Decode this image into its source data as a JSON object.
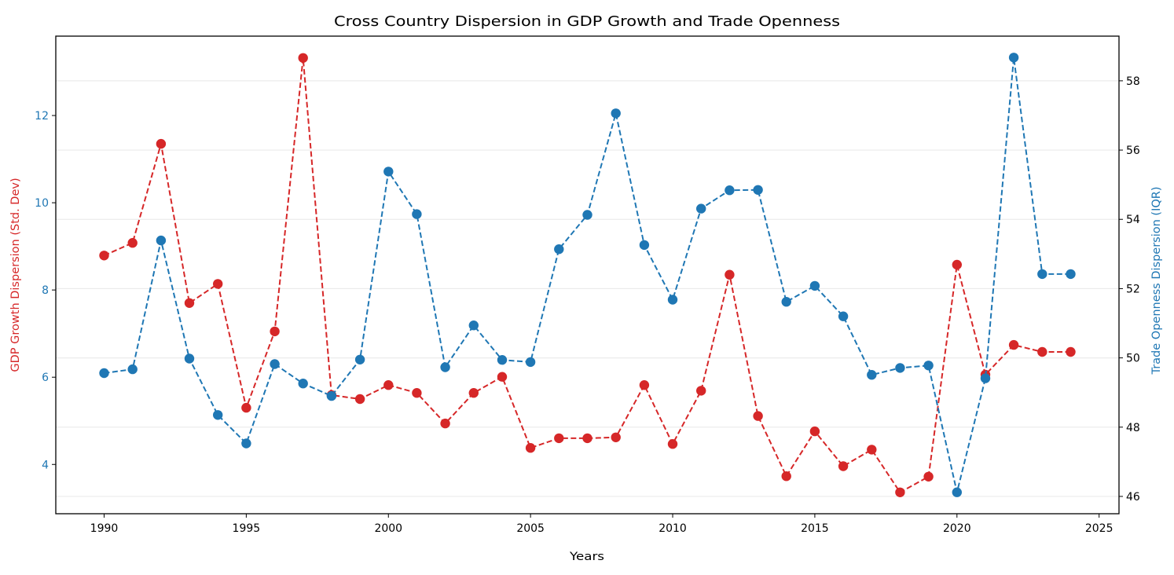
{
  "chart_data": {
    "type": "line",
    "title": "Cross Country Dispersion in GDP Growth and Trade Openness",
    "xlabel": "Years",
    "ylabel": "GDP Growth Dispersion (Std. Dev)",
    "y2label": "Trade Openness Dispersion (IQR)",
    "x": [
      1990,
      1991,
      1992,
      1993,
      1994,
      1995,
      1996,
      1997,
      1998,
      1999,
      2000,
      2001,
      2002,
      2003,
      2004,
      2005,
      2006,
      2007,
      2008,
      2009,
      2010,
      2011,
      2012,
      2013,
      2014,
      2015,
      2016,
      2017,
      2018,
      2019,
      2020,
      2021,
      2022,
      2023,
      2024
    ],
    "xlim": [
      1988.3,
      2025.7
    ],
    "xticks": [
      "1990",
      "1995",
      "2000",
      "2005",
      "2010",
      "2015",
      "2020",
      "2025"
    ],
    "xtick_values": [
      1990,
      1995,
      2000,
      2005,
      2010,
      2015,
      2020,
      2025
    ],
    "ylim": [
      2.87,
      13.82
    ],
    "yticks": [
      "4",
      "6",
      "8",
      "10",
      "12"
    ],
    "ytick_values": [
      4,
      6,
      8,
      10,
      12
    ],
    "y2lim": [
      45.5,
      59.29
    ],
    "y2ticks": [
      "46",
      "48",
      "50",
      "52",
      "54",
      "56",
      "58"
    ],
    "y2tick_values": [
      46,
      48,
      50,
      52,
      54,
      56,
      58
    ],
    "grid": "horizontal (right axis)",
    "series": [
      {
        "name": "GDP Growth Dispersion (Std. Dev)",
        "axis": "left",
        "color": "#d62728",
        "style": "dashed-marker",
        "values": [
          8.79,
          9.08,
          11.35,
          7.7,
          8.14,
          5.3,
          7.05,
          13.32,
          5.59,
          5.5,
          5.82,
          5.64,
          4.94,
          5.64,
          6.01,
          4.38,
          4.6,
          4.6,
          4.62,
          5.82,
          4.47,
          5.69,
          8.35,
          5.11,
          3.73,
          4.76,
          3.96,
          4.34,
          3.36,
          3.72,
          8.58,
          6.06,
          6.74,
          6.58,
          6.58
        ]
      },
      {
        "name": "Trade Openness Dispersion (IQR)",
        "axis": "right",
        "color": "#1f77b4",
        "style": "dashed-marker",
        "values": [
          49.56,
          49.67,
          53.39,
          49.98,
          48.35,
          47.53,
          49.82,
          49.26,
          48.9,
          49.95,
          55.38,
          54.15,
          49.73,
          50.94,
          49.94,
          49.88,
          53.14,
          54.13,
          57.06,
          53.26,
          51.68,
          54.31,
          54.84,
          54.85,
          51.62,
          52.08,
          51.2,
          49.51,
          49.71,
          49.78,
          46.12,
          49.41,
          58.67,
          52.42,
          52.42
        ]
      }
    ],
    "colors": {
      "left_axis_text": "#1f77b4",
      "left_label": "#d62728",
      "right_label": "#1f77b4",
      "axis": "#000000",
      "grid": "#ebebeb"
    }
  }
}
